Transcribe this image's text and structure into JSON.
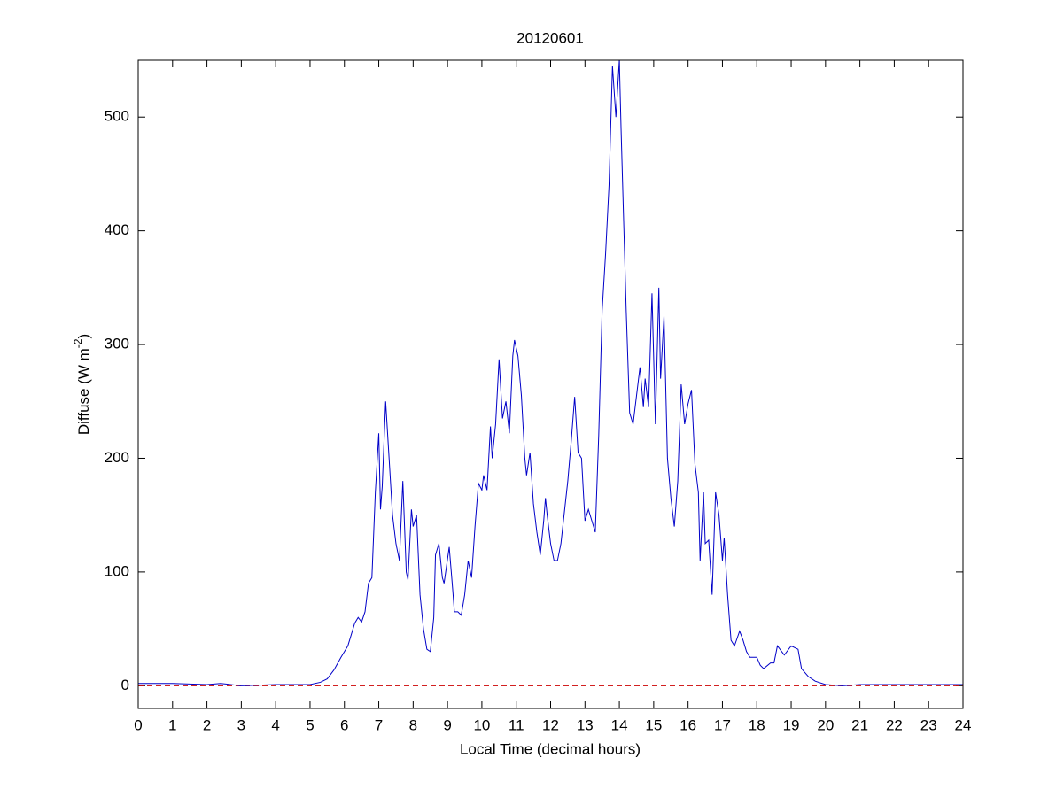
{
  "chart_data": {
    "type": "line",
    "title": "20120601",
    "xlabel": "Local Time (decimal hours)",
    "ylabel": [
      "Diffuse (W m",
      "-2",
      ")"
    ],
    "xlim": [
      0,
      24
    ],
    "xticks": [
      0,
      1,
      2,
      3,
      4,
      5,
      6,
      7,
      8,
      9,
      10,
      11,
      12,
      13,
      14,
      15,
      16,
      17,
      18,
      19,
      20,
      21,
      22,
      23,
      24
    ],
    "ylim": [
      -20,
      550
    ],
    "yticks": [
      0,
      100,
      200,
      300,
      400,
      500
    ],
    "reference_line": {
      "value": 0,
      "color": "#cc0000",
      "style": "dashed"
    },
    "series": [
      {
        "color": "#0000c8",
        "x": [
          0,
          1,
          2,
          2.4,
          3,
          4,
          4.5,
          5,
          5.3,
          5.5,
          5.7,
          5.9,
          6.1,
          6.3,
          6.4,
          6.5,
          6.6,
          6.7,
          6.8,
          6.9,
          7.0,
          7.05,
          7.1,
          7.2,
          7.3,
          7.4,
          7.5,
          7.6,
          7.7,
          7.8,
          7.85,
          7.95,
          8.0,
          8.1,
          8.2,
          8.3,
          8.4,
          8.5,
          8.6,
          8.65,
          8.75,
          8.85,
          8.9,
          9.05,
          9.15,
          9.2,
          9.3,
          9.4,
          9.5,
          9.6,
          9.7,
          9.8,
          9.9,
          10.0,
          10.05,
          10.15,
          10.25,
          10.3,
          10.4,
          10.5,
          10.6,
          10.7,
          10.8,
          10.9,
          10.95,
          11.05,
          11.15,
          11.25,
          11.3,
          11.4,
          11.5,
          11.6,
          11.7,
          11.8,
          11.85,
          11.9,
          12.0,
          12.1,
          12.2,
          12.3,
          12.5,
          12.6,
          12.7,
          12.8,
          12.9,
          13.0,
          13.1,
          13.2,
          13.3,
          13.4,
          13.5,
          13.6,
          13.7,
          13.8,
          13.9,
          14.0,
          14.05,
          14.2,
          14.3,
          14.4,
          14.5,
          14.6,
          14.7,
          14.75,
          14.85,
          14.95,
          15.05,
          15.15,
          15.2,
          15.3,
          15.4,
          15.5,
          15.6,
          15.7,
          15.8,
          15.9,
          16.0,
          16.1,
          16.2,
          16.3,
          16.35,
          16.45,
          16.5,
          16.6,
          16.7,
          16.8,
          16.9,
          17.0,
          17.05,
          17.15,
          17.25,
          17.35,
          17.5,
          17.6,
          17.7,
          17.8,
          18.0,
          18.1,
          18.2,
          18.4,
          18.5,
          18.6,
          18.8,
          19.0,
          19.2,
          19.3,
          19.5,
          19.7,
          20.0,
          20.5,
          21,
          22,
          23,
          24
        ],
        "values": [
          2,
          2,
          1,
          2,
          0,
          1,
          1,
          1,
          3,
          6,
          14,
          25,
          35,
          55,
          60,
          56,
          65,
          90,
          95,
          170,
          222,
          155,
          175,
          250,
          200,
          150,
          125,
          110,
          180,
          100,
          93,
          155,
          140,
          150,
          80,
          50,
          32,
          30,
          60,
          115,
          125,
          95,
          90,
          122,
          85,
          65,
          65,
          62,
          80,
          110,
          95,
          140,
          178,
          172,
          185,
          172,
          228,
          200,
          230,
          287,
          235,
          250,
          222,
          290,
          304,
          290,
          255,
          200,
          185,
          205,
          160,
          135,
          115,
          145,
          165,
          150,
          125,
          110,
          110,
          125,
          180,
          215,
          254,
          205,
          200,
          145,
          155,
          145,
          135,
          220,
          330,
          380,
          440,
          545,
          500,
          550,
          490,
          330,
          240,
          230,
          255,
          280,
          245,
          270,
          245,
          345,
          230,
          350,
          270,
          325,
          200,
          165,
          140,
          180,
          265,
          230,
          248,
          260,
          195,
          170,
          110,
          170,
          125,
          128,
          80,
          170,
          150,
          110,
          130,
          80,
          40,
          35,
          48,
          40,
          30,
          25,
          25,
          18,
          15,
          20,
          20,
          35,
          27,
          35,
          32,
          15,
          8,
          4,
          1,
          0,
          1,
          1,
          1,
          1
        ]
      }
    ]
  }
}
